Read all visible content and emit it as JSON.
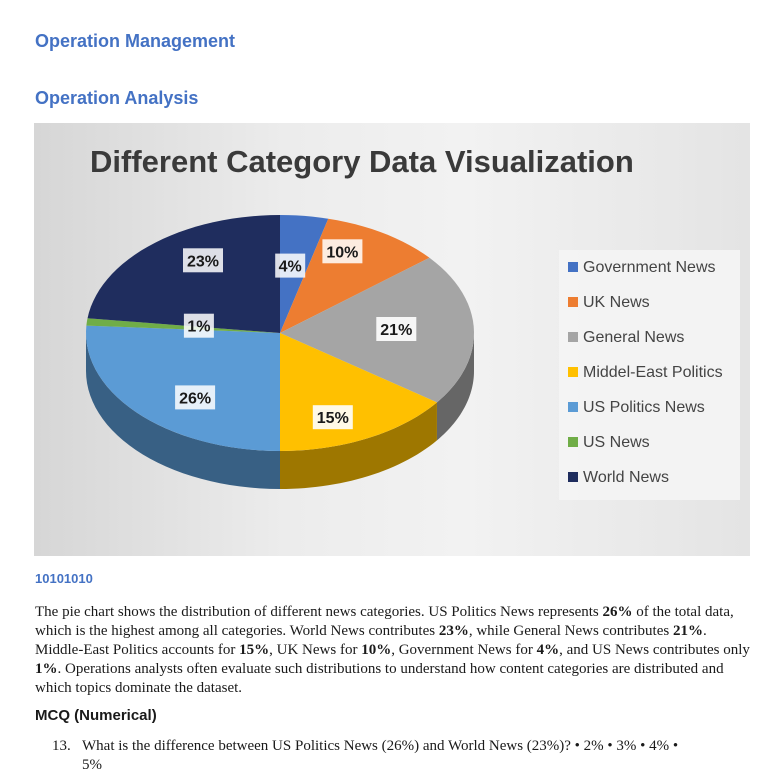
{
  "document": {
    "heading1": "Operation Management",
    "heading2": "Operation Analysis",
    "code": "10101010",
    "paragraph": [
      {
        "t": "The pie chart shows the distribution of different news categories. US Politics News represents ",
        "b": false
      },
      {
        "t": "26%",
        "b": true
      },
      {
        "t": " of the total data, which is the highest among all categories. World News contributes ",
        "b": false
      },
      {
        "t": "23%",
        "b": true
      },
      {
        "t": ", while General News contributes ",
        "b": false
      },
      {
        "t": "21%",
        "b": true
      },
      {
        "t": ". Middle-East Politics accounts for ",
        "b": false
      },
      {
        "t": "15%",
        "b": true
      },
      {
        "t": ", UK News for ",
        "b": false
      },
      {
        "t": "10%",
        "b": true
      },
      {
        "t": ", Government News for ",
        "b": false
      },
      {
        "t": "4%",
        "b": true
      },
      {
        "t": ", and US News contributes only ",
        "b": false
      },
      {
        "t": "1%",
        "b": true
      },
      {
        "t": ". Operations analysts often evaluate such distributions to understand how content categories are distributed and which topics dominate the dataset.",
        "b": false
      }
    ],
    "mcq_heading": "MCQ (Numerical)",
    "question_number": "13.",
    "question_line1": "What is the difference between US Politics News (26%) and World News (23%)? • 2% • 3% • 4% •",
    "question_line2": "5%"
  },
  "chart_data": {
    "type": "pie",
    "title": "Different Category Data Visualization",
    "legend_position": "right",
    "slices": [
      {
        "label": "Government News",
        "value": 4,
        "display": "4%",
        "color": "#4472c4"
      },
      {
        "label": "UK News",
        "value": 10,
        "display": "10%",
        "color": "#ed7d31"
      },
      {
        "label": "General News",
        "value": 21,
        "display": "21%",
        "color": "#a5a5a5"
      },
      {
        "label": "Middel-East Politics",
        "value": 15,
        "display": "15%",
        "color": "#ffc000"
      },
      {
        "label": "US Politics News",
        "value": 26,
        "display": "26%",
        "color": "#5b9bd5"
      },
      {
        "label": "US News",
        "value": 1,
        "display": "1%",
        "color": "#70ad47"
      },
      {
        "label": "World News",
        "value": 23,
        "display": "23%",
        "color": "#1f2d5e"
      }
    ]
  }
}
